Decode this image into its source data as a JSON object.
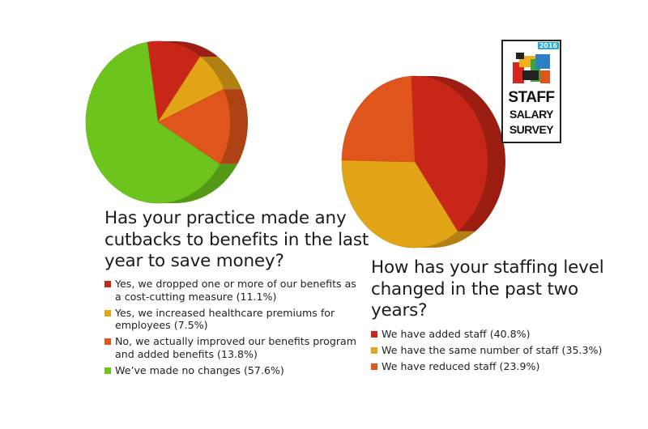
{
  "chart_data": [
    {
      "type": "pie",
      "title": "Has your practice made any cutbacks to benefits in the last year to save money?",
      "categories": [
        "Yes, we dropped one or more of our benefits as a cost-cutting measure (11.1%)",
        "Yes, we increased healthcare premiums for employees (7.5%)",
        "No, we actually improved our benefits program and added benefits (13.8%)",
        "We’ve made no changes (57.6%)"
      ],
      "values": [
        11.1,
        7.5,
        13.8,
        57.6
      ],
      "colors": [
        "#c82617",
        "#e2a517",
        "#e0551b",
        "#6cc41c"
      ],
      "style": "3d"
    },
    {
      "type": "pie",
      "title": "How has your staffing level changed in the past two years?",
      "categories": [
        "We have added staff (40.8%)",
        "We have the same number of staff (35.3%)",
        "We have reduced staff (23.9%)"
      ],
      "values": [
        40.8,
        35.3,
        23.9
      ],
      "colors": [
        "#c82617",
        "#e2a517",
        "#e0551b"
      ],
      "style": "3d"
    }
  ],
  "badge": {
    "year": "2016",
    "line1": "STAFF",
    "line2": "SALARY",
    "line3": "SURVEY",
    "icon": "survey-logo-icon"
  }
}
